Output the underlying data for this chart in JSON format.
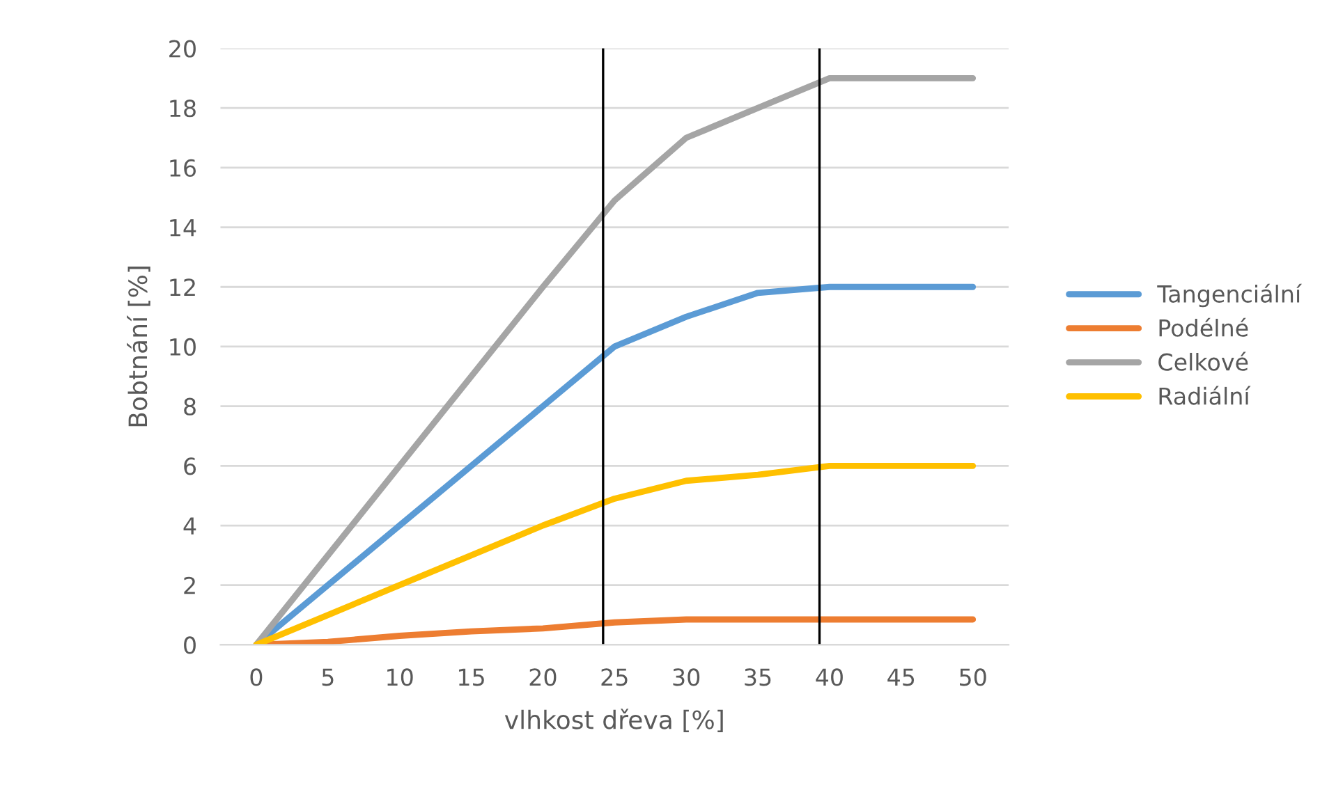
{
  "chart_data": {
    "type": "line",
    "xlabel": "vlhkost dřeva [%]",
    "ylabel": "Bobtnání [%]",
    "x": [
      0,
      5,
      10,
      15,
      20,
      25,
      30,
      35,
      40,
      45,
      50
    ],
    "series": [
      {
        "name": "Tangenciální",
        "color": "#5b9bd5",
        "values": [
          0,
          2,
          4,
          6,
          8,
          10,
          11,
          11.8,
          12,
          12,
          12
        ]
      },
      {
        "name": "Podélné",
        "color": "#ed7d31",
        "values": [
          0,
          0.1,
          0.3,
          0.45,
          0.55,
          0.75,
          0.85,
          0.85,
          0.85,
          0.85,
          0.85
        ]
      },
      {
        "name": "Celkové",
        "color": "#a5a5a5",
        "values": [
          0,
          3,
          6,
          9,
          12,
          14.9,
          17,
          18,
          19,
          19,
          19
        ]
      },
      {
        "name": "Radiální",
        "color": "#ffc000",
        "values": [
          0,
          1,
          2,
          3,
          4,
          4.9,
          5.5,
          5.7,
          6,
          6,
          6
        ]
      }
    ],
    "xlim": [
      -2.5,
      52.5
    ],
    "xticks": [
      0,
      5,
      10,
      15,
      20,
      25,
      30,
      35,
      40,
      45,
      50
    ],
    "ylim": [
      0,
      20
    ],
    "yticks": [
      0,
      2,
      4,
      6,
      8,
      10,
      12,
      14,
      16,
      18,
      20
    ],
    "ref_lines": [
      {
        "axis": "x",
        "value": 24.2,
        "color": "#000000"
      },
      {
        "axis": "x",
        "value": 39.3,
        "color": "#000000"
      }
    ],
    "grid": "y",
    "legend": "right",
    "marker": "none",
    "line_style": "solid"
  }
}
